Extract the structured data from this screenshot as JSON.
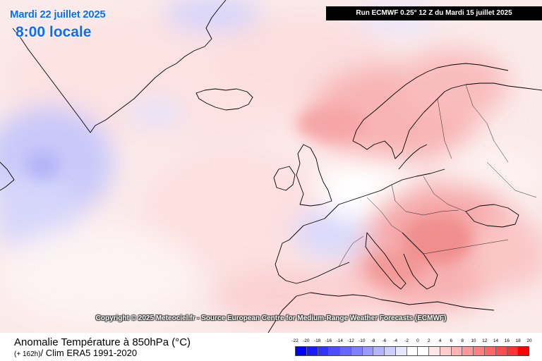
{
  "header": {
    "date": "Mardi 22 juillet 2025",
    "time": "8:00 locale",
    "run": "Run ECMWF 0.25° 12 Z du Mardi 15 juillet 2025"
  },
  "copyright": "Copyright © 2025 Meteociel.fr - Source European Centre for Medium-Range Weather Forecasts (ECMWF)",
  "footer": {
    "title": "Anomalie Température à 850hPa (°C)",
    "lead": "(+ 162h)",
    "clim": "/ Clim ERA5 1991-2020"
  },
  "legend": {
    "ticks": [
      "-22",
      "-20",
      "-18",
      "-16",
      "-14",
      "-12",
      "-10",
      "-8",
      "-6",
      "-4",
      "-2",
      "0",
      "2",
      "4",
      "6",
      "8",
      "10",
      "12",
      "14",
      "16",
      "18",
      "20"
    ],
    "colors": [
      "#0000ff",
      "#1a1aff",
      "#3333ff",
      "#4d4dff",
      "#6666ff",
      "#8080ff",
      "#9999ff",
      "#b3b3ff",
      "#ccccff",
      "#e6e6ff",
      "#ffffff",
      "#ffffff",
      "#ffe6e6",
      "#ffcccc",
      "#ffb3b3",
      "#ff9999",
      "#ff8080",
      "#ff6666",
      "#ff4d4d",
      "#ff3333",
      "#ff0000"
    ]
  }
}
